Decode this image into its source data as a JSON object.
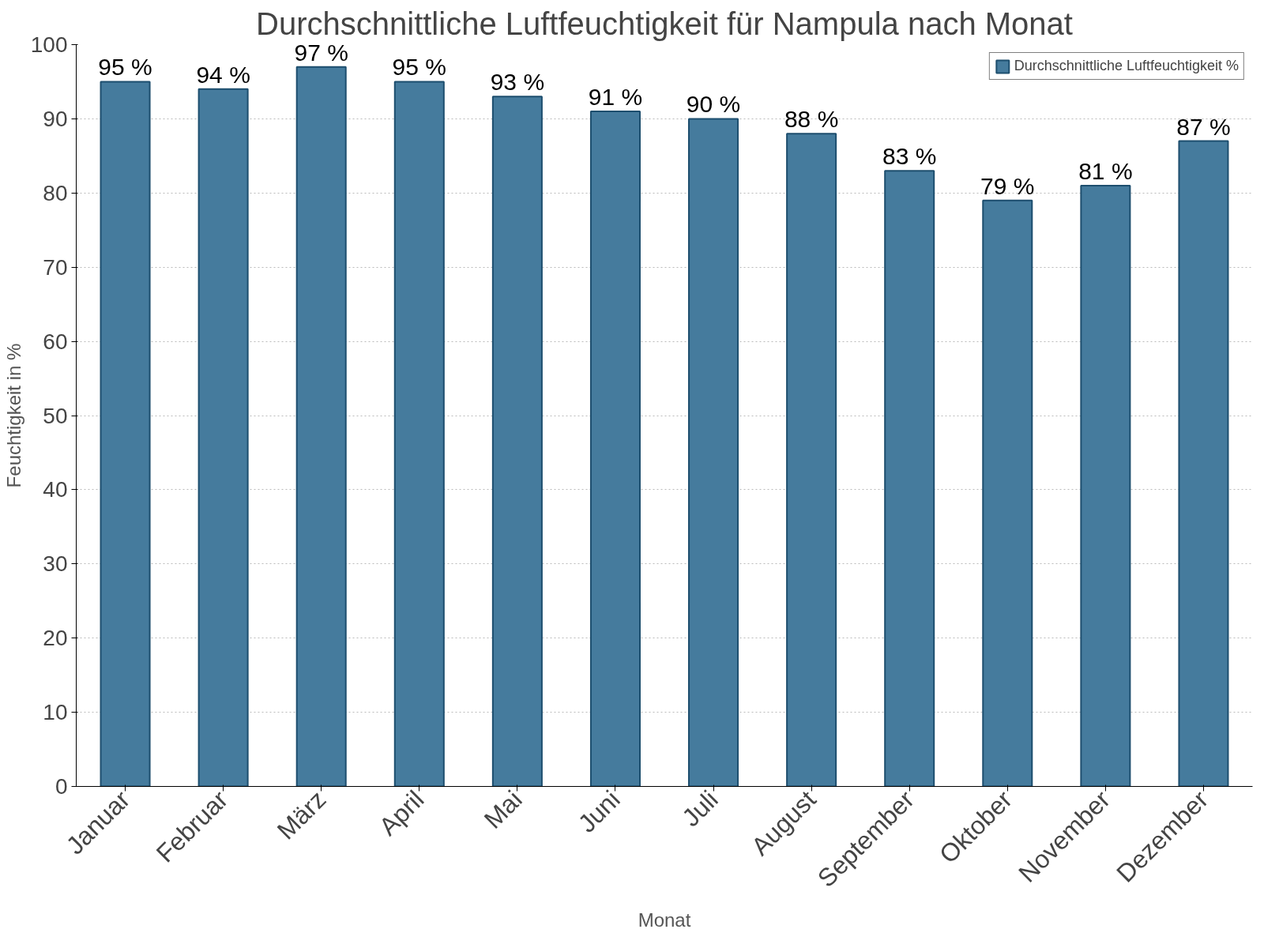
{
  "chart_data": {
    "type": "bar",
    "title": "Durchschnittliche Luftfeuchtigkeit für Nampula nach Monat",
    "xlabel": "Monat",
    "ylabel": "Feuchtigkeit in %",
    "categories": [
      "Januar",
      "Februar",
      "März",
      "April",
      "Mai",
      "Juni",
      "Juli",
      "August",
      "September",
      "Oktober",
      "November",
      "Dezember"
    ],
    "series": [
      {
        "name": "Durchschnittliche Luftfeuchtigkeit %",
        "color": "#457b9d",
        "values": [
          95,
          94,
          97,
          95,
          93,
          91,
          90,
          88,
          83,
          79,
          81,
          87
        ],
        "value_labels": [
          "95 %",
          "94 %",
          "97 %",
          "95 %",
          "93 %",
          "91 %",
          "90 %",
          "88 %",
          "83 %",
          "79 %",
          "81 %",
          "87 %"
        ]
      }
    ],
    "ylim": [
      0,
      100
    ],
    "yticks": [
      0,
      10,
      20,
      30,
      40,
      50,
      60,
      70,
      80,
      90,
      100
    ],
    "grid": "y",
    "legend": "top right"
  }
}
